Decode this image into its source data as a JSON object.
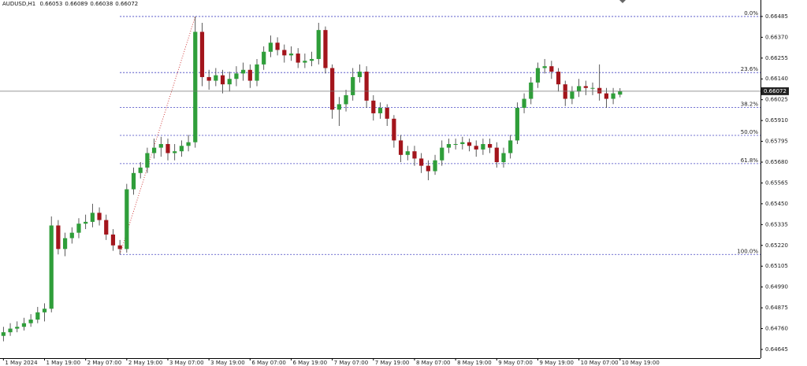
{
  "chart_data": {
    "type": "candlestick",
    "symbol": "AUDUSD,H1",
    "x": [
      0,
      2,
      4,
      6,
      8,
      10,
      12,
      14,
      16,
      18,
      20,
      22,
      24,
      26,
      28,
      30,
      32,
      34,
      36,
      38,
      40,
      42,
      44,
      46,
      48,
      50,
      52,
      54,
      56,
      58,
      60,
      62,
      64,
      66,
      68,
      70,
      72,
      74,
      76,
      78,
      80,
      82,
      84,
      86,
      88,
      90,
      92,
      94,
      96,
      98,
      100,
      102,
      104,
      106,
      108,
      110,
      112,
      114,
      116,
      118,
      120,
      122,
      124,
      126,
      128,
      130,
      132,
      134,
      136,
      138,
      140,
      142,
      144,
      146,
      148,
      150,
      152,
      154,
      156,
      158,
      160,
      162,
      164,
      166,
      168,
      170,
      172,
      174,
      176,
      178,
      180
    ],
    "open": [
      0.6472,
      0.6474,
      0.6476,
      0.6477,
      0.6479,
      0.6481,
      0.6485,
      0.6487,
      0.6533,
      0.652,
      0.6526,
      0.6529,
      0.6534,
      0.6535,
      0.654,
      0.6536,
      0.6528,
      0.6522,
      0.652,
      0.6553,
      0.6562,
      0.6565,
      0.6573,
      0.6576,
      0.6578,
      0.6573,
      0.6574,
      0.6577,
      0.6579,
      0.664,
      0.6615,
      0.6613,
      0.6616,
      0.6611,
      0.6614,
      0.6617,
      0.6619,
      0.6613,
      0.6622,
      0.6629,
      0.6634,
      0.663,
      0.6627,
      0.6628,
      0.6623,
      0.6624,
      0.6625,
      0.6641,
      0.662,
      0.6597,
      0.66,
      0.6605,
      0.6615,
      0.6618,
      0.6602,
      0.6595,
      0.6598,
      0.6592,
      0.658,
      0.6572,
      0.6574,
      0.657,
      0.6566,
      0.6563,
      0.6569,
      0.6576,
      0.6578,
      0.6578,
      0.6579,
      0.6577,
      0.6575,
      0.6578,
      0.6576,
      0.6568,
      0.6573,
      0.658,
      0.6598,
      0.6603,
      0.6612,
      0.662,
      0.6621,
      0.6618,
      0.6611,
      0.6603,
      0.6607,
      0.661,
      0.6609,
      0.6609,
      0.6606,
      0.6603,
      0.66053
    ],
    "high": [
      0.6477,
      0.6479,
      0.648,
      0.6482,
      0.6484,
      0.6488,
      0.649,
      0.6538,
      0.6536,
      0.6529,
      0.6532,
      0.6537,
      0.6539,
      0.6545,
      0.6543,
      0.6539,
      0.6531,
      0.6525,
      0.6556,
      0.6565,
      0.6568,
      0.6576,
      0.6581,
      0.6582,
      0.6581,
      0.6578,
      0.658,
      0.6583,
      0.66485,
      0.6645,
      0.6619,
      0.662,
      0.6619,
      0.6618,
      0.6621,
      0.6623,
      0.6622,
      0.6625,
      0.6632,
      0.6638,
      0.6637,
      0.6633,
      0.6632,
      0.6631,
      0.6628,
      0.6629,
      0.6645,
      0.6643,
      0.6622,
      0.6604,
      0.6608,
      0.662,
      0.6622,
      0.6621,
      0.6605,
      0.6601,
      0.66,
      0.6594,
      0.6583,
      0.6577,
      0.6577,
      0.6573,
      0.6569,
      0.6572,
      0.658,
      0.6581,
      0.6581,
      0.6582,
      0.6581,
      0.658,
      0.6581,
      0.6581,
      0.6579,
      0.6576,
      0.6583,
      0.6601,
      0.6606,
      0.6615,
      0.6623,
      0.6625,
      0.6624,
      0.662,
      0.6613,
      0.661,
      0.6614,
      0.6613,
      0.6612,
      0.6622,
      0.6609,
      0.6609,
      0.66089
    ],
    "low": [
      0.6469,
      0.6472,
      0.6474,
      0.6475,
      0.6477,
      0.6479,
      0.648,
      0.6485,
      0.6517,
      0.6516,
      0.6523,
      0.6526,
      0.6531,
      0.6532,
      0.6533,
      0.6525,
      0.6519,
      0.6517,
      0.6518,
      0.655,
      0.6559,
      0.6562,
      0.657,
      0.6571,
      0.6569,
      0.6569,
      0.6571,
      0.6574,
      0.6576,
      0.661,
      0.6608,
      0.661,
      0.6606,
      0.6607,
      0.661,
      0.6613,
      0.6609,
      0.661,
      0.6619,
      0.6626,
      0.6627,
      0.6623,
      0.6624,
      0.662,
      0.662,
      0.6621,
      0.6622,
      0.6617,
      0.6592,
      0.6588,
      0.6596,
      0.6602,
      0.6612,
      0.6598,
      0.6591,
      0.6592,
      0.6588,
      0.6576,
      0.6568,
      0.6569,
      0.6566,
      0.6562,
      0.6558,
      0.6561,
      0.6566,
      0.6573,
      0.6575,
      0.6575,
      0.6574,
      0.6571,
      0.6572,
      0.6573,
      0.6565,
      0.6565,
      0.657,
      0.6578,
      0.6595,
      0.66,
      0.6609,
      0.6617,
      0.6614,
      0.6607,
      0.6599,
      0.66,
      0.6604,
      0.6605,
      0.6605,
      0.6602,
      0.6598,
      0.66,
      0.66038
    ],
    "close": [
      0.6474,
      0.6476,
      0.6477,
      0.6479,
      0.6481,
      0.6485,
      0.6487,
      0.6533,
      0.652,
      0.6526,
      0.6529,
      0.6534,
      0.6535,
      0.654,
      0.6536,
      0.6528,
      0.6522,
      0.652,
      0.6553,
      0.6562,
      0.6565,
      0.6573,
      0.6576,
      0.6578,
      0.6573,
      0.6574,
      0.6577,
      0.6579,
      0.664,
      0.6615,
      0.6613,
      0.6616,
      0.6611,
      0.6614,
      0.6617,
      0.6619,
      0.6613,
      0.6622,
      0.6629,
      0.6634,
      0.663,
      0.6627,
      0.6628,
      0.6623,
      0.6624,
      0.6625,
      0.6641,
      0.662,
      0.6597,
      0.66,
      0.6605,
      0.6615,
      0.6618,
      0.6602,
      0.6595,
      0.6598,
      0.6592,
      0.658,
      0.6572,
      0.6574,
      0.657,
      0.6566,
      0.6563,
      0.6569,
      0.6576,
      0.6578,
      0.6578,
      0.6579,
      0.6577,
      0.6575,
      0.6578,
      0.6576,
      0.6568,
      0.6573,
      0.658,
      0.6598,
      0.6603,
      0.6612,
      0.662,
      0.6621,
      0.6618,
      0.6611,
      0.6603,
      0.6607,
      0.661,
      0.6609,
      0.6609,
      0.6606,
      0.6603,
      0.6606,
      0.66072
    ],
    "up_color": "#2f9e3a",
    "down_color": "#a3151c",
    "xlim": [
      -1,
      221
    ],
    "xticks": [
      {
        "value": 0,
        "label": "1 May 2024"
      },
      {
        "value": 12,
        "label": "1 May 19:00"
      },
      {
        "value": 24,
        "label": "2 May 07:00"
      },
      {
        "value": 36,
        "label": "2 May 19:00"
      },
      {
        "value": 48,
        "label": "3 May 07:00"
      },
      {
        "value": 60,
        "label": "3 May 19:00"
      },
      {
        "value": 72,
        "label": "6 May 07:00"
      },
      {
        "value": 84,
        "label": "6 May 19:00"
      },
      {
        "value": 96,
        "label": "7 May 07:00"
      },
      {
        "value": 108,
        "label": "7 May 19:00"
      },
      {
        "value": 120,
        "label": "8 May 07:00"
      },
      {
        "value": 132,
        "label": "8 May 19:00"
      },
      {
        "value": 144,
        "label": "9 May 07:00"
      },
      {
        "value": 156,
        "label": "9 May 19:00"
      },
      {
        "value": 168,
        "label": "10 May 07:00"
      },
      {
        "value": 180,
        "label": "10 May 19:00"
      }
    ],
    "ylim": [
      0.64597,
      0.66576
    ],
    "yticks": [
      0.66485,
      {
        "value": 0.6637,
        "label": "0.66370"
      },
      0.66255,
      {
        "value": 0.6614,
        "label": "0.66140"
      },
      0.66025,
      {
        "value": 0.6591,
        "label": "0.65910"
      },
      0.65795,
      {
        "value": 0.6568,
        "label": "0.65680"
      },
      0.65565,
      {
        "value": 0.6545,
        "label": "0.65450"
      },
      0.65335,
      {
        "value": 0.6522,
        "label": "0.65220"
      },
      0.65105,
      {
        "value": 0.6499,
        "label": "0.64990"
      },
      0.64875,
      {
        "value": 0.6476,
        "label": "0.64760"
      },
      0.64645
    ],
    "fibonacci": {
      "x": [
        34,
        56
      ],
      "color": "#3b3bbf",
      "trend_color": "#d04040",
      "levels": [
        {
          "value": 0.66485,
          "label": "0.0%"
        },
        {
          "value": 0.66175,
          "label": "23.6%"
        },
        {
          "value": 0.65983,
          "label": "38.2%"
        },
        {
          "value": 0.65828,
          "label": "50.0%"
        },
        {
          "value": 0.65672,
          "label": "61.8%"
        },
        {
          "value": 0.6517,
          "label": "100.0%"
        }
      ]
    }
  }
}
